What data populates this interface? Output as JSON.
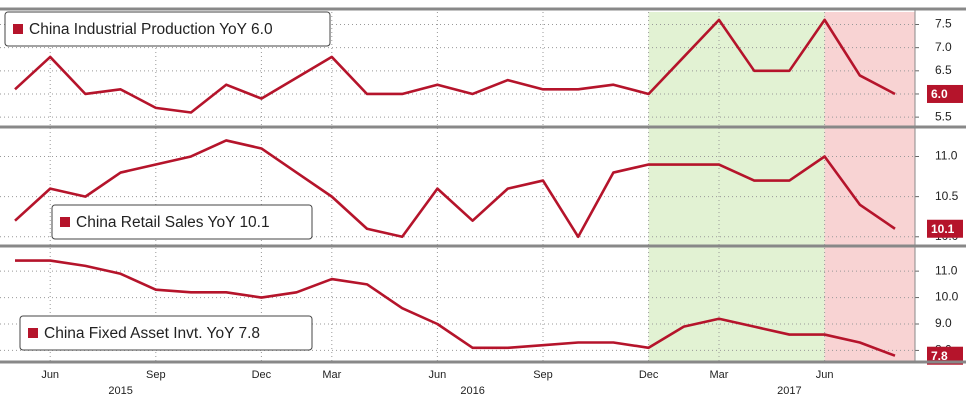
{
  "chart_data": {
    "type": "line",
    "categories": [
      null,
      "Jun",
      null,
      null,
      "Sep",
      null,
      null,
      "Dec",
      null,
      "Mar",
      null,
      null,
      "Jun",
      null,
      null,
      "Sep",
      null,
      null,
      "Dec",
      null,
      "Mar",
      null,
      null,
      "Jun",
      null,
      null
    ],
    "year_labels": [
      null,
      null,
      null,
      "2015",
      null,
      null,
      null,
      null,
      null,
      null,
      null,
      null,
      null,
      "2016",
      null,
      null,
      null,
      null,
      null,
      null,
      null,
      null,
      "2017",
      null,
      null,
      null
    ],
    "shading": [
      {
        "from": 18,
        "to": 23,
        "color": "#e2f2d3"
      },
      {
        "from": 23,
        "to": 25,
        "color": "#f8d3d3"
      }
    ],
    "grid": true,
    "panels": [
      {
        "series": [
          {
            "name": "China Industrial Production YoY 6.0",
            "color": "#b5142b",
            "values": [
              6.1,
              6.8,
              6.0,
              6.1,
              5.7,
              5.6,
              6.2,
              5.9,
              6.35,
              6.8,
              6.0,
              6.0,
              6.2,
              6.0,
              6.3,
              6.1,
              6.1,
              6.2,
              6.0,
              6.8,
              7.6,
              6.5,
              6.5,
              7.6,
              6.4,
              6.0
            ]
          }
        ],
        "value_label": "6.0",
        "ylim": [
          5.33,
          7.77
        ],
        "yticks": [
          5.5,
          {
            "value": 6,
            "label": "6.0"
          },
          6.5,
          {
            "value": 7,
            "label": "7.0"
          },
          7.5
        ]
      },
      {
        "series": [
          {
            "name": "China Retail Sales YoY 10.1",
            "color": "#b5142b",
            "values": [
              10.2,
              10.6,
              10.5,
              10.8,
              10.9,
              11.0,
              11.2,
              11.1,
              10.8,
              10.5,
              10.1,
              10.0,
              10.6,
              10.2,
              10.6,
              10.7,
              10.0,
              10.8,
              10.9,
              10.9,
              10.9,
              10.7,
              10.7,
              11.0,
              10.4,
              10.1
            ]
          }
        ],
        "value_label": "10.1",
        "ylim": [
          9.91,
          11.33
        ],
        "yticks": [
          {
            "value": 10,
            "label": "10.0"
          },
          10.5,
          {
            "value": 11,
            "label": "11.0"
          }
        ]
      },
      {
        "series": [
          {
            "name": "China Fixed Asset Invt. YoY 7.8",
            "color": "#b5142b",
            "values": [
              11.4,
              11.4,
              11.2,
              10.9,
              10.3,
              10.2,
              10.2,
              10.0,
              10.2,
              10.7,
              10.5,
              9.6,
              9.0,
              8.1,
              8.1,
              8.2,
              8.3,
              8.3,
              8.1,
              8.9,
              9.2,
              8.9,
              8.6,
              8.6,
              8.3,
              7.8
            ]
          }
        ],
        "value_label": "7.8",
        "ylim": [
          7.6,
          11.8
        ],
        "yticks": [
          {
            "value": 8,
            "label": "8.0"
          },
          {
            "value": 9,
            "label": "9.0"
          },
          {
            "value": 10,
            "label": "10.0"
          },
          {
            "value": 11,
            "label": "11.0"
          }
        ]
      }
    ]
  }
}
